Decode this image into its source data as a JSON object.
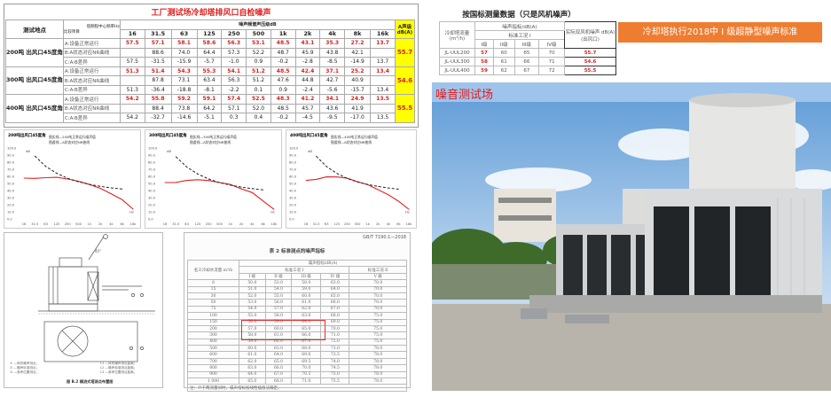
{
  "top": {
    "title": "工厂测试场冷却塔排风口自检噪声",
    "col_location": "测试地点",
    "col_freq_header": "倍频程中心频率Hz",
    "col_item_header": "比较项目",
    "col_spl": "噪声频谱声压级dB",
    "col_a": "A声级dB(A)",
    "freqs": [
      "16",
      "31.5",
      "63",
      "125",
      "250",
      "500",
      "1k",
      "2k",
      "4k",
      "8k",
      "16k"
    ],
    "groups": [
      {
        "location": "200吨 出风口45度角",
        "a_level": "55.7",
        "rows": [
          {
            "item": "A:设备正常运行",
            "values": [
              "57.5",
              "57.1",
              "58.1",
              "58.6",
              "56.3",
              "53.1",
              "48.5",
              "43.1",
              "35.3",
              "27.2",
              "13.7"
            ]
          },
          {
            "item": "B:A状态对应NR曲线",
            "values": [
              "",
              "88.6",
              "74.0",
              "64.4",
              "57.3",
              "52.2",
              "48.7",
              "45.9",
              "43.8",
              "42.1",
              ""
            ]
          },
          {
            "item": "C:A-B差异",
            "values": [
              "57.5",
              "-31.5",
              "-15.9",
              "-5.7",
              "-1.0",
              "0.9",
              "-0.2",
              "-2.8",
              "-8.5",
              "-14.9",
              "13.7"
            ]
          }
        ]
      },
      {
        "location": "300吨 出风口45度角",
        "a_level": "54.6",
        "rows": [
          {
            "item": "A:设备正常运行",
            "values": [
              "51.3",
              "51.4",
              "54.3",
              "55.3",
              "54.1",
              "51.2",
              "48.5",
              "42.4",
              "37.1",
              "25.2",
              "13.4"
            ]
          },
          {
            "item": "B:A状态对应NR曲线",
            "values": [
              "",
              "87.8",
              "73.1",
              "63.4",
              "56.3",
              "51.2",
              "47.6",
              "44.8",
              "42.7",
              "40.9",
              ""
            ]
          },
          {
            "item": "C:A-B差异",
            "values": [
              "51.3",
              "-36.4",
              "-18.8",
              "-8.1",
              "-2.2",
              "0.1",
              "0.9",
              "-2.4",
              "-5.6",
              "-15.7",
              "13.4"
            ]
          }
        ]
      },
      {
        "location": "400吨 出风口45度角",
        "a_level": "55.5",
        "rows": [
          {
            "item": "A:设备正常运行",
            "values": [
              "54.2",
              "55.8",
              "59.2",
              "59.1",
              "57.4",
              "52.5",
              "48.3",
              "41.2",
              "34.1",
              "24.9",
              "13.5"
            ]
          },
          {
            "item": "B:A状态对应NR曲线",
            "values": [
              "",
              "88.4",
              "73.8",
              "64.2",
              "57.1",
              "52.0",
              "48.5",
              "45.7",
              "43.6",
              "41.9",
              ""
            ]
          },
          {
            "item": "C:A-B差异",
            "values": [
              "54.2",
              "-32.7",
              "-14.6",
              "-5.1",
              "0.3",
              "0.4",
              "-0.2",
              "-4.5",
              "-9.5",
              "-17.0",
              "13.5"
            ]
          }
        ]
      }
    ]
  },
  "chart_data": [
    {
      "type": "line",
      "title": "200吨出风口45度角",
      "legend": [
        "图实线—200吨正常运行噪声值",
        "图虚线—A状态对应NR曲线"
      ],
      "ylabel": "dB",
      "xlabel": "Hz",
      "ylim": [
        0,
        100
      ],
      "yticks": [
        "0.0",
        "10.0",
        "20.0",
        "30.0",
        "40.0",
        "50.0",
        "60.0",
        "70.0",
        "80.0",
        "90.0",
        "100.0"
      ],
      "categories": [
        "16",
        "31.5",
        "63",
        "125",
        "250",
        "500",
        "1k",
        "2k",
        "4k",
        "8k",
        "16k"
      ],
      "series": [
        {
          "name": "图实线—200吨正常运行噪声值",
          "style": "solid",
          "color": "#e02020",
          "values": [
            57.5,
            57.1,
            58.1,
            58.6,
            56.3,
            53.1,
            48.5,
            43.1,
            35.3,
            27.2,
            13.7
          ]
        },
        {
          "name": "图虚线—A状态对应NR曲线",
          "style": "dashed",
          "color": "#222222",
          "values": [
            null,
            88.6,
            74.0,
            64.4,
            57.3,
            52.2,
            48.7,
            45.9,
            43.8,
            42.1,
            null
          ]
        }
      ]
    },
    {
      "type": "line",
      "title": "300吨出风口45度角",
      "legend": [
        "图实线—300吨正常运行噪声值",
        "图虚线—A状态对应NR曲线"
      ],
      "ylabel": "dB",
      "xlabel": "Hz",
      "ylim": [
        0,
        100
      ],
      "yticks": [
        "0.0",
        "10.0",
        "20.0",
        "30.0",
        "40.0",
        "50.0",
        "60.0",
        "70.0",
        "80.0",
        "90.0",
        "100.0"
      ],
      "categories": [
        "16",
        "31.5",
        "63",
        "125",
        "250",
        "500",
        "1k",
        "2k",
        "4k",
        "8k",
        "16k"
      ],
      "series": [
        {
          "name": "图实线—300吨正常运行噪声值",
          "style": "solid",
          "color": "#e02020",
          "values": [
            51.3,
            51.4,
            54.3,
            55.3,
            54.1,
            51.2,
            48.5,
            42.4,
            37.1,
            25.2,
            13.4
          ]
        },
        {
          "name": "图虚线—A状态对应NR曲线",
          "style": "dashed",
          "color": "#222222",
          "values": [
            null,
            87.8,
            73.1,
            63.4,
            56.3,
            51.2,
            47.6,
            44.8,
            42.7,
            40.9,
            null
          ]
        }
      ]
    },
    {
      "type": "line",
      "title": "400吨出风口45度角",
      "legend": [
        "图实线—400吨正常运行噪声值",
        "图虚线—A状态对应NR曲线"
      ],
      "ylabel": "dB",
      "xlabel": "Hz",
      "ylim": [
        0,
        100
      ],
      "yticks": [
        "0.0",
        "10.0",
        "20.0",
        "30.0",
        "40.0",
        "50.0",
        "60.0",
        "70.0",
        "80.0",
        "90.0",
        "100.0"
      ],
      "categories": [
        "16",
        "31.5",
        "63",
        "125",
        "250",
        "500",
        "1k",
        "2k",
        "4k",
        "8k",
        "16k"
      ],
      "series": [
        {
          "name": "图实线—400吨正常运行噪声值",
          "style": "solid",
          "color": "#e02020",
          "values": [
            54.2,
            55.8,
            59.2,
            59.1,
            57.4,
            52.5,
            48.3,
            41.2,
            34.1,
            24.9,
            13.5
          ]
        },
        {
          "name": "图虚线—A状态对应NR曲线",
          "style": "dashed",
          "color": "#222222",
          "values": [
            null,
            88.4,
            73.8,
            64.2,
            57.1,
            52.0,
            48.5,
            45.7,
            43.6,
            41.9,
            null
          ]
        }
      ]
    }
  ],
  "national": {
    "title": "按国标测量数据（只是风机噪声）",
    "col_model": "冷却塔流量(m³/h)",
    "col_noise": "噪声指标/dB(A)",
    "col_condition": "标准工况 I",
    "col_actual": "实际双风机噪声 dB(A) (出风口)",
    "grades": [
      "I级",
      "II级",
      "III级",
      "IV级"
    ],
    "rows": [
      {
        "model": "JL-UUL200",
        "values": [
          "57",
          "60",
          "65",
          "70"
        ],
        "actual": "55.7"
      },
      {
        "model": "JL-UUL300",
        "values": [
          "58",
          "61",
          "66",
          "71"
        ],
        "actual": "54.6"
      },
      {
        "model": "JL-UUL400",
        "values": [
          "59",
          "62",
          "67",
          "72"
        ],
        "actual": "55.5"
      }
    ]
  },
  "banner": "冷却塔执行2018中 I 级超静型噪声标准",
  "standard": {
    "code": "GB/T 7190.1—2018",
    "title": "表 2  标准测点的噪声指标",
    "col_flow": "名义冷却水流量 m³/h",
    "col_noise": "噪声指标/dB(A)",
    "col_cond1": "标准工况 I",
    "col_cond2": "标准工况 II",
    "grades": [
      "I 级",
      "II 级",
      "III 级",
      "IV 级",
      "V 级"
    ],
    "rows": [
      [
        "8",
        "50.0",
        "53.0",
        "58.0",
        "63.0",
        "70.0"
      ],
      [
        "15",
        "51.0",
        "54.0",
        "59.0",
        "64.0",
        "70.0"
      ],
      [
        "30",
        "52.0",
        "55.0",
        "60.0",
        "65.0",
        "70.0"
      ],
      [
        "50",
        "53.0",
        "56.0",
        "61.0",
        "66.0",
        "70.0"
      ],
      [
        "75",
        "54.0",
        "57.0",
        "62.0",
        "67.0",
        "70.0"
      ],
      [
        "100",
        "55.0",
        "58.0",
        "63.0",
        "68.0",
        "75.0"
      ],
      [
        "150",
        "56.0",
        "59.0",
        "64.0",
        "69.0",
        "75.0"
      ],
      [
        "200",
        "57.0",
        "60.0",
        "65.0",
        "70.0",
        "75.0"
      ],
      [
        "300",
        "58.0",
        "61.0",
        "66.0",
        "71.0",
        "75.0"
      ],
      [
        "400",
        "59.0",
        "62.0",
        "67.0",
        "72.0",
        "75.0"
      ],
      [
        "500",
        "60.0",
        "63.0",
        "68.0",
        "73.0",
        "78.0"
      ],
      [
        "600",
        "61.0",
        "64.0",
        "69.0",
        "73.5",
        "78.0"
      ],
      [
        "700",
        "62.0",
        "65.0",
        "69.5",
        "74.0",
        "78.0"
      ],
      [
        "800",
        "63.0",
        "66.0",
        "70.0",
        "74.5",
        "78.0"
      ],
      [
        "900",
        "64.0",
        "67.0",
        "70.5",
        "75.0",
        "78.0"
      ],
      [
        "1 000",
        "65.0",
        "68.0",
        "71.0",
        "75.5",
        "78.0"
      ]
    ],
    "note": "注：介于两流量间时，噪声指标按线性插值法确定。"
  },
  "diagram": {
    "caption": "图 B.2  横流式塔测点布置图",
    "legend_left": [
      "① —风机噪声测点；",
      "② —噪声标准测点；",
      "③ —参考位置测点。"
    ],
    "legend_right": [
      "L1 —风机噪声测点距离；",
      "L2 —噪声标准测点距离；",
      "L3 —参考位置测点距离。"
    ],
    "angle": "45°"
  },
  "photo": {
    "label": "噪音测试场"
  }
}
